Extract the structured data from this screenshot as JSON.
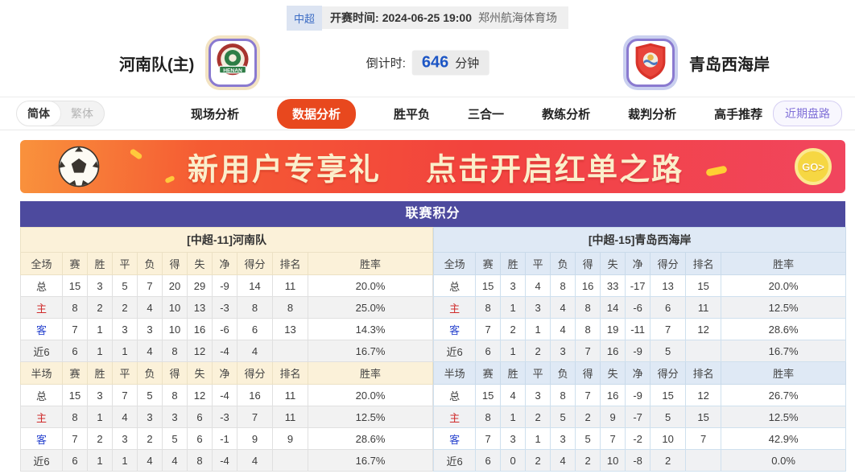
{
  "match_bar": {
    "league": "中超",
    "kickoff_label": "开赛时间:",
    "kickoff_time": "2024-06-25 19:00",
    "venue": "郑州航海体育场"
  },
  "header": {
    "home_team": "河南队(主)",
    "home_logo_text": "HENAN",
    "away_team": "青岛西海岸",
    "countdown_label": "倒计时:",
    "countdown_value": "646",
    "countdown_unit": "分钟"
  },
  "nav": {
    "lang_simplified": "简体",
    "lang_traditional": "繁体",
    "tabs": [
      {
        "label": "现场分析",
        "name": "tab-live-analysis",
        "active": false
      },
      {
        "label": "数据分析",
        "name": "tab-data-analysis",
        "active": true
      },
      {
        "label": "胜平负",
        "name": "tab-win-draw-loss",
        "active": false
      },
      {
        "label": "三合一",
        "name": "tab-three-in-one",
        "active": false
      },
      {
        "label": "教练分析",
        "name": "tab-coach-analysis",
        "active": false
      },
      {
        "label": "裁判分析",
        "name": "tab-referee-analysis",
        "active": false
      },
      {
        "label": "高手推荐",
        "name": "tab-expert-picks",
        "active": false
      }
    ],
    "recent_odds_label": "近期盘路"
  },
  "banner": {
    "title_part1": "新用户专享礼",
    "title_part2": "点击开启红单之路",
    "go_label": "GO>"
  },
  "standings": {
    "title": "联赛积分",
    "full_scope_header": "全场",
    "half_scope_header": "半场",
    "columns": [
      "赛",
      "胜",
      "平",
      "负",
      "得",
      "失",
      "净",
      "得分",
      "排名",
      "胜率"
    ],
    "home": {
      "team_header": "[中超-11]河南队",
      "full": [
        {
          "scope": "总",
          "vals": [
            "15",
            "3",
            "5",
            "7",
            "20",
            "29",
            "-9",
            "14",
            "11",
            "20.0%"
          ]
        },
        {
          "scope": "主",
          "vals": [
            "8",
            "2",
            "2",
            "4",
            "10",
            "13",
            "-3",
            "8",
            "8",
            "25.0%"
          ]
        },
        {
          "scope": "客",
          "vals": [
            "7",
            "1",
            "3",
            "3",
            "10",
            "16",
            "-6",
            "6",
            "13",
            "14.3%"
          ]
        },
        {
          "scope": "近6",
          "vals": [
            "6",
            "1",
            "1",
            "4",
            "8",
            "12",
            "-4",
            "4",
            "",
            "16.7%"
          ]
        }
      ],
      "half": [
        {
          "scope": "总",
          "vals": [
            "15",
            "3",
            "7",
            "5",
            "8",
            "12",
            "-4",
            "16",
            "11",
            "20.0%"
          ]
        },
        {
          "scope": "主",
          "vals": [
            "8",
            "1",
            "4",
            "3",
            "3",
            "6",
            "-3",
            "7",
            "11",
            "12.5%"
          ]
        },
        {
          "scope": "客",
          "vals": [
            "7",
            "2",
            "3",
            "2",
            "5",
            "6",
            "-1",
            "9",
            "9",
            "28.6%"
          ]
        },
        {
          "scope": "近6",
          "vals": [
            "6",
            "1",
            "1",
            "4",
            "4",
            "8",
            "-4",
            "4",
            "",
            "16.7%"
          ]
        }
      ]
    },
    "away": {
      "team_header": "[中超-15]青岛西海岸",
      "full": [
        {
          "scope": "总",
          "vals": [
            "15",
            "3",
            "4",
            "8",
            "16",
            "33",
            "-17",
            "13",
            "15",
            "20.0%"
          ]
        },
        {
          "scope": "主",
          "vals": [
            "8",
            "1",
            "3",
            "4",
            "8",
            "14",
            "-6",
            "6",
            "11",
            "12.5%"
          ]
        },
        {
          "scope": "客",
          "vals": [
            "7",
            "2",
            "1",
            "4",
            "8",
            "19",
            "-11",
            "7",
            "12",
            "28.6%"
          ]
        },
        {
          "scope": "近6",
          "vals": [
            "6",
            "1",
            "2",
            "3",
            "7",
            "16",
            "-9",
            "5",
            "",
            "16.7%"
          ]
        }
      ],
      "half": [
        {
          "scope": "总",
          "vals": [
            "15",
            "4",
            "3",
            "8",
            "7",
            "16",
            "-9",
            "15",
            "12",
            "26.7%"
          ]
        },
        {
          "scope": "主",
          "vals": [
            "8",
            "1",
            "2",
            "5",
            "2",
            "9",
            "-7",
            "5",
            "15",
            "12.5%"
          ]
        },
        {
          "scope": "客",
          "vals": [
            "7",
            "3",
            "1",
            "3",
            "5",
            "7",
            "-2",
            "10",
            "7",
            "42.9%"
          ]
        },
        {
          "scope": "近6",
          "vals": [
            "6",
            "0",
            "2",
            "4",
            "2",
            "10",
            "-8",
            "2",
            "",
            "0.0%"
          ]
        }
      ]
    }
  },
  "colors": {
    "accent_tab_active": "#e8481e",
    "standings_header": "#4d4a9e",
    "countdown_value": "#1d56c5",
    "home_scope": "#cf2b2b",
    "away_scope": "#2b46cf",
    "left_panel": "#fbf1d9",
    "right_panel": "#dfe9f5"
  }
}
